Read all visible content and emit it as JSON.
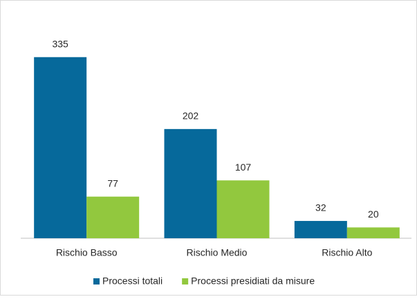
{
  "chart_data": {
    "type": "bar",
    "categories": [
      "Rischio Basso",
      "Rischio Medio",
      "Rischio Alto"
    ],
    "series": [
      {
        "name": "Processi totali",
        "color": "#06699b",
        "values": [
          335,
          202,
          32
        ]
      },
      {
        "name": "Processi presidiati da misure",
        "color": "#92c83e",
        "values": [
          77,
          107,
          20
        ]
      }
    ],
    "ylim": [
      0,
      350
    ],
    "legend": "bottom"
  }
}
